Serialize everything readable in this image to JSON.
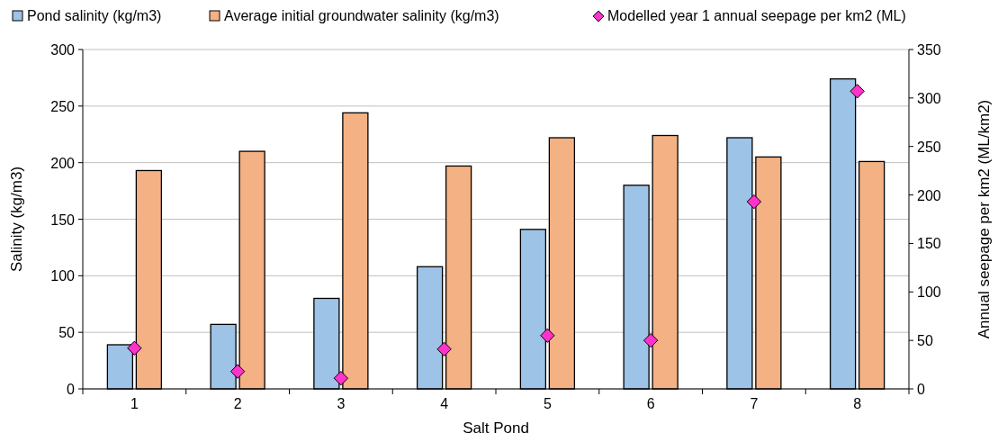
{
  "chart_data": {
    "type": "bar",
    "xlabel": "Salt Pond",
    "ylabel": "Salinity (kg/m3)",
    "y2label": "Annual seepage per km2 (ML/km2)",
    "categories": [
      "1",
      "2",
      "3",
      "4",
      "5",
      "6",
      "7",
      "8"
    ],
    "series": [
      {
        "name": "Pond salinity (kg/m3)",
        "color": "#9dc3e6",
        "values": [
          39,
          57,
          80,
          108,
          141,
          180,
          222,
          274
        ]
      },
      {
        "name": "Average initial groundwater salinity (kg/m3)",
        "color": "#f4b183",
        "values": [
          193,
          210,
          244,
          197,
          222,
          224,
          205,
          201
        ]
      },
      {
        "name": "Modelled year 1 annual seepage per km2 (ML)",
        "type": "scatter",
        "axis": "y2",
        "color": "#ff33cc",
        "values": [
          42,
          18,
          11,
          41,
          55,
          50,
          193,
          307
        ]
      }
    ],
    "ylim": [
      0,
      300
    ],
    "yticks": [
      0,
      50,
      100,
      150,
      200,
      250,
      300
    ],
    "y2lim": [
      0,
      350
    ],
    "y2ticks": [
      0,
      50,
      100,
      150,
      200,
      250,
      300,
      350
    ],
    "grid": "y",
    "legend": "top",
    "marker": "diamond"
  }
}
